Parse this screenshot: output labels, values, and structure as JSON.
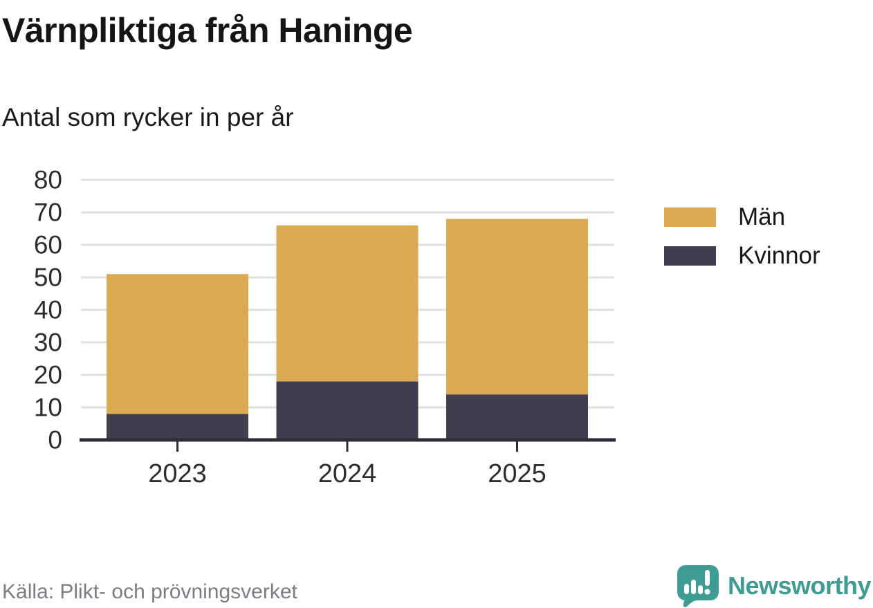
{
  "header": {
    "title": "Värnpliktiga från Haninge",
    "subtitle": "Antal som rycker in per år"
  },
  "chart_data": {
    "type": "bar",
    "stacked": true,
    "title": "Värnpliktiga från Haninge",
    "subtitle": "Antal som rycker in per år",
    "categories": [
      "2023",
      "2024",
      "2025"
    ],
    "series": [
      {
        "name": "Kvinnor",
        "color": "#413F4F",
        "values": [
          8,
          18,
          14
        ]
      },
      {
        "name": "Män",
        "color": "#DAAA55",
        "values": [
          43,
          48,
          54
        ]
      }
    ],
    "stack_totals": [
      51,
      66,
      68
    ],
    "ylim": [
      0,
      80
    ],
    "yticks": [
      0,
      10,
      20,
      30,
      40,
      50,
      60,
      70,
      80
    ],
    "xlabel": "",
    "ylabel": "",
    "grid": "horizontal",
    "grid_color": "#E0E0E0",
    "axis_color": "#2E2C38",
    "tick_label_color": "#2d2d2d",
    "legend_position": "right"
  },
  "legend": {
    "items": [
      {
        "label": "Män",
        "color": "#DAAA55"
      },
      {
        "label": "Kvinnor",
        "color": "#413F4F"
      }
    ]
  },
  "footer": {
    "source": "Källa: Plikt- och prövningsverket",
    "brand": "Newsworthy",
    "brand_color": "#3E9C95",
    "brand_icon": "chart-bars-in-speech-bubble"
  }
}
